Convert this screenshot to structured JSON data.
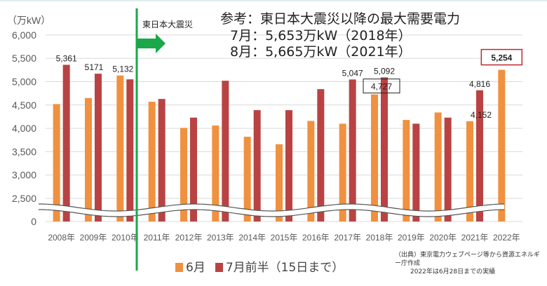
{
  "chart_data": {
    "type": "bar",
    "unit_label": "（万kW）",
    "categories": [
      "2008年",
      "2009年",
      "2010年",
      "2011年",
      "2012年",
      "2013年",
      "2014年",
      "2015年",
      "2016年",
      "2017年",
      "2018年",
      "2019年",
      "2020年",
      "2021年",
      "2022年"
    ],
    "series": [
      {
        "name": "6月",
        "color": "#f0913f",
        "values": [
          4520,
          4650,
          5132,
          4570,
          4010,
          4060,
          3820,
          3660,
          4160,
          4100,
          4727,
          4180,
          4340,
          4152,
          5254
        ]
      },
      {
        "name": "7月前半（15日まで）",
        "color": "#b94343",
        "values": [
          5361,
          5171,
          5050,
          4630,
          4230,
          5020,
          4390,
          4390,
          4840,
          5047,
          5092,
          4100,
          4230,
          4816,
          null
        ]
      }
    ],
    "yticks": [
      "0",
      "2,500",
      "3,000",
      "3,500",
      "4,000",
      "4,500",
      "5,000",
      "5,500",
      "6,000"
    ],
    "ytick_values": [
      0,
      2500,
      3000,
      3500,
      4000,
      4500,
      5000,
      5500,
      6000
    ],
    "axis_break": [
      0,
      2500
    ],
    "ylim": [
      0,
      6000
    ],
    "grid": true,
    "legend_placement": "bottom",
    "data_labels": [
      {
        "series": 1,
        "index": 0,
        "text": "5,361"
      },
      {
        "series": 1,
        "index": 1,
        "text": "5171"
      },
      {
        "series": 0,
        "index": 2,
        "text": "5,132"
      },
      {
        "series": 1,
        "index": 9,
        "text": "5,047"
      },
      {
        "series": 0,
        "index": 10,
        "text": "4,727",
        "boxed": true
      },
      {
        "series": 1,
        "index": 10,
        "text": "5,092"
      },
      {
        "series": 0,
        "index": 13,
        "text": "4,152"
      },
      {
        "series": 1,
        "index": 13,
        "text": "4,816"
      },
      {
        "series": 0,
        "index": 14,
        "text": "5,254",
        "highlight": true
      }
    ],
    "event_marker": {
      "label": "東日本大震災",
      "between": [
        "2010年",
        "2011年"
      ],
      "color": "#1aa84a"
    }
  },
  "note": {
    "line1": "参考：東日本大震災以降の最大需要電力",
    "line2": "7月：5,653万kW（2018年）",
    "line3": "8月：5,665万kW（2021年）"
  },
  "source": {
    "line1": "（出典）東京電力ウェブページ等から資源エネルギー庁作成",
    "line2": "2022年は6月28日までの実績"
  },
  "legend": [
    {
      "label": "6月",
      "color": "#f0913f"
    },
    {
      "label": "7月前半（15日まで）",
      "color": "#b94343"
    }
  ]
}
